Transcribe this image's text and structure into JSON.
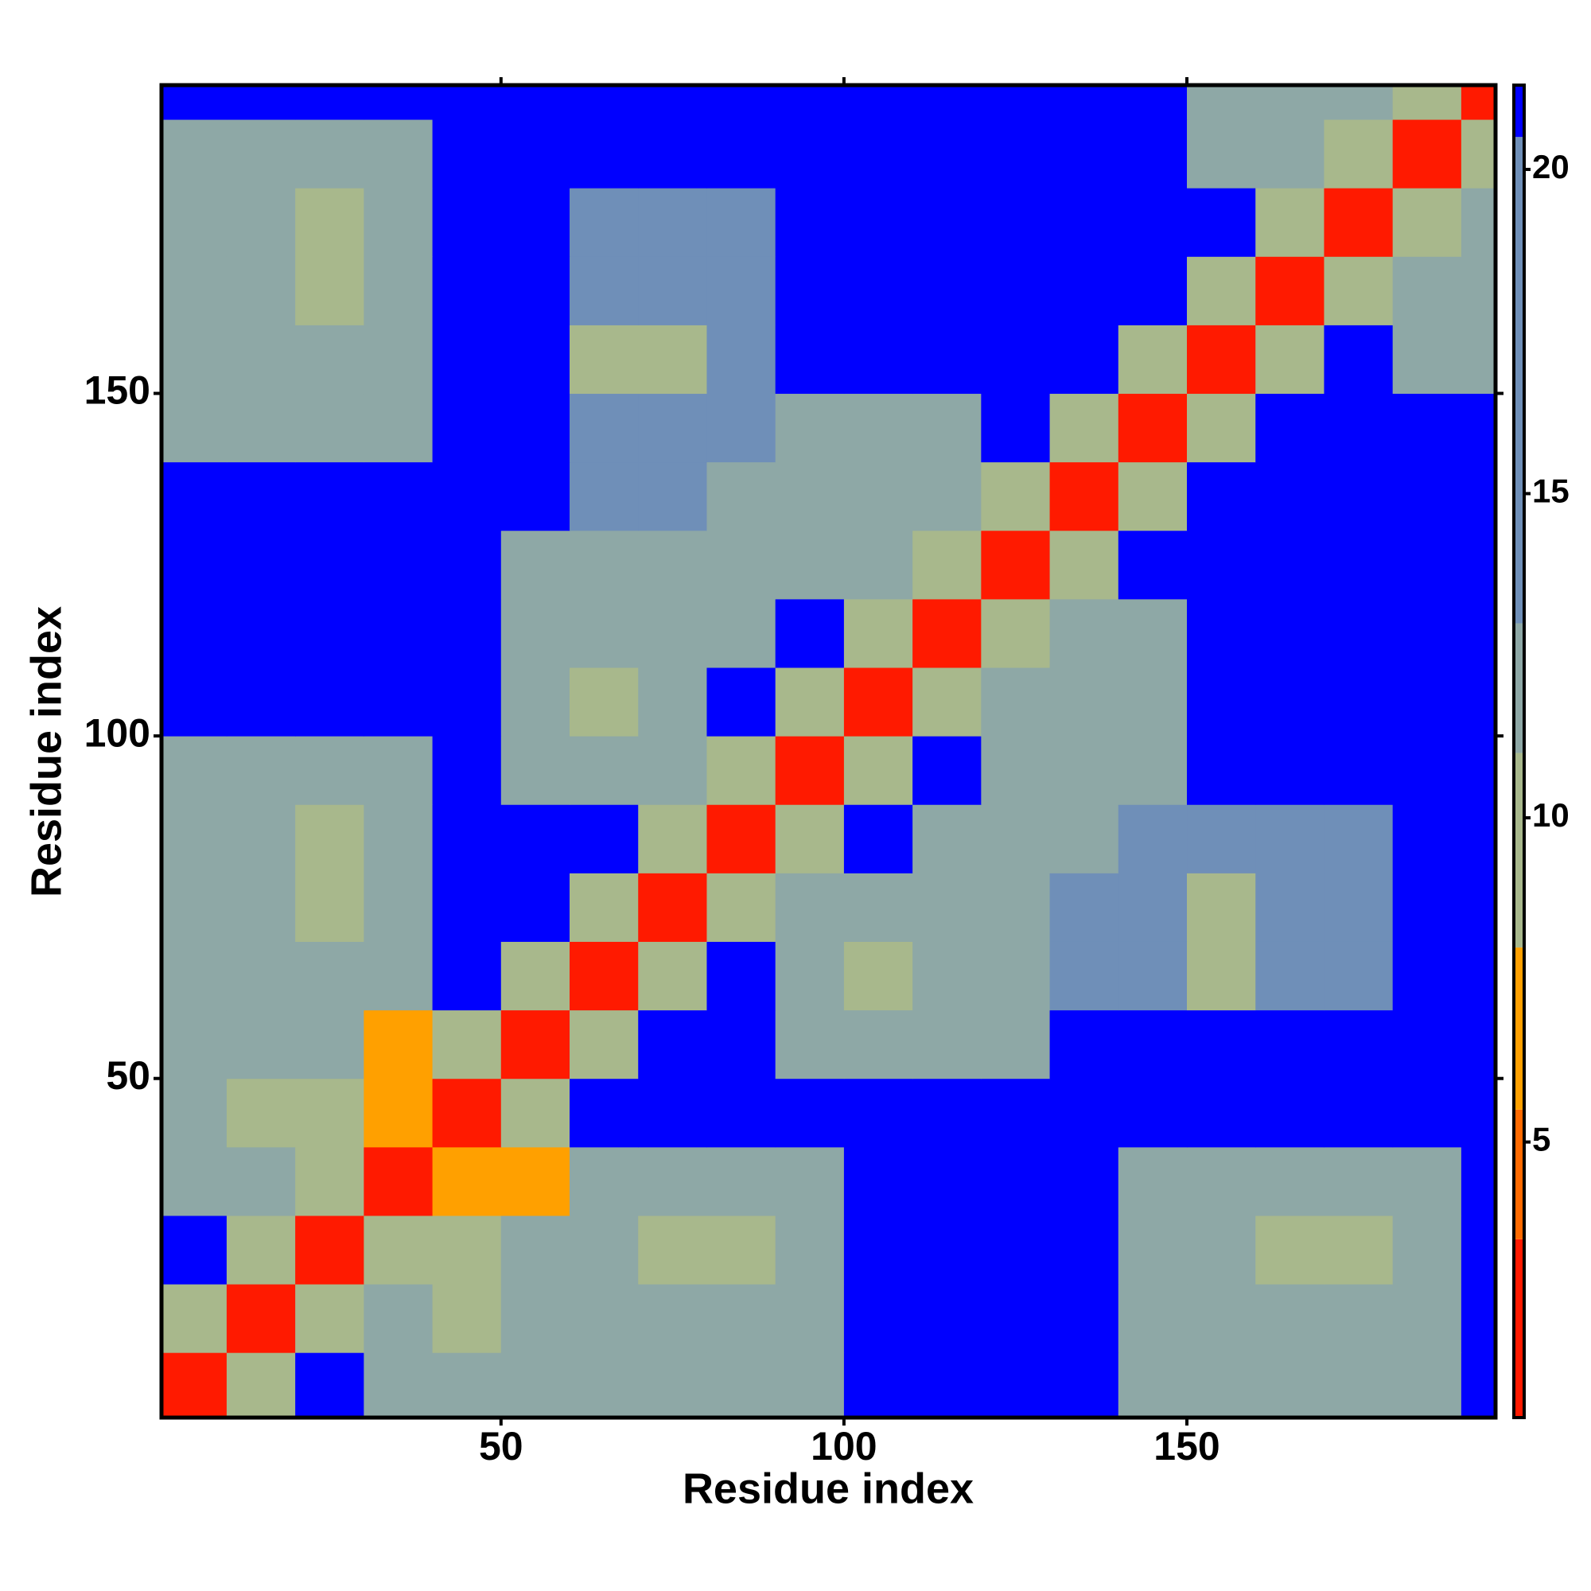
{
  "chart_data": {
    "type": "heatmap",
    "x_label": "Residue index",
    "y_label": "Residue index",
    "x": [
      5,
      15,
      25,
      35,
      45,
      55,
      65,
      75,
      85,
      95,
      105,
      115,
      125,
      135,
      145,
      155,
      165,
      175,
      185,
      195
    ],
    "y": [
      5,
      15,
      25,
      35,
      45,
      55,
      65,
      75,
      85,
      95,
      105,
      115,
      125,
      135,
      145,
      155,
      165,
      175,
      185,
      195
    ],
    "z": [
      [
        3,
        10,
        21,
        12,
        12,
        12,
        12,
        12,
        12,
        12,
        21,
        21,
        21,
        21,
        13,
        13,
        13,
        13,
        13,
        21
      ],
      [
        10,
        3,
        10,
        12,
        11,
        12,
        12,
        12,
        12,
        12,
        21,
        21,
        21,
        21,
        13,
        13,
        13,
        13,
        13,
        21
      ],
      [
        21,
        10,
        3,
        10,
        11,
        12,
        12,
        10,
        10,
        12,
        21,
        21,
        21,
        21,
        13,
        13,
        11,
        11,
        13,
        21
      ],
      [
        12,
        12,
        10,
        3,
        8,
        8,
        12,
        12,
        12,
        12,
        21,
        21,
        21,
        21,
        13,
        13,
        13,
        13,
        13,
        21
      ],
      [
        12,
        11,
        11,
        8,
        3,
        10,
        21,
        21,
        21,
        21,
        21,
        21,
        21,
        21,
        21,
        21,
        21,
        21,
        21,
        21
      ],
      [
        12,
        12,
        12,
        8,
        10,
        3,
        10,
        21,
        21,
        12,
        12,
        12,
        12,
        21,
        21,
        21,
        21,
        21,
        21,
        21
      ],
      [
        12,
        12,
        12,
        12,
        21,
        10,
        3,
        10,
        21,
        12,
        10,
        12,
        12,
        14,
        14,
        11,
        14,
        14,
        21,
        21
      ],
      [
        12,
        12,
        10,
        12,
        21,
        21,
        10,
        3,
        10,
        12,
        12,
        12,
        12,
        14,
        14,
        11,
        14,
        14,
        21,
        21
      ],
      [
        12,
        12,
        10,
        12,
        21,
        21,
        21,
        10,
        3,
        10,
        21,
        13,
        13,
        13,
        14,
        14,
        14,
        14,
        21,
        21
      ],
      [
        12,
        12,
        12,
        12,
        21,
        12,
        12,
        12,
        10,
        3,
        10,
        21,
        12,
        12,
        12,
        21,
        21,
        21,
        21,
        21
      ],
      [
        21,
        21,
        21,
        21,
        21,
        12,
        10,
        12,
        21,
        10,
        3,
        10,
        12,
        12,
        12,
        21,
        21,
        21,
        21,
        21
      ],
      [
        21,
        21,
        21,
        21,
        21,
        12,
        12,
        12,
        13,
        21,
        10,
        3,
        10,
        12,
        12,
        21,
        21,
        21,
        21,
        21
      ],
      [
        21,
        21,
        21,
        21,
        21,
        12,
        12,
        12,
        13,
        12,
        12,
        10,
        3,
        10,
        21,
        21,
        21,
        21,
        21,
        21
      ],
      [
        21,
        21,
        21,
        21,
        21,
        21,
        14,
        14,
        13,
        12,
        12,
        12,
        10,
        3,
        10,
        21,
        21,
        21,
        21,
        21
      ],
      [
        13,
        13,
        13,
        13,
        21,
        21,
        14,
        14,
        14,
        12,
        12,
        12,
        21,
        10,
        3,
        10,
        21,
        21,
        21,
        21
      ],
      [
        13,
        13,
        13,
        13,
        21,
        21,
        11,
        11,
        14,
        21,
        21,
        21,
        21,
        21,
        10,
        3,
        10,
        21,
        13,
        13
      ],
      [
        13,
        13,
        11,
        13,
        21,
        21,
        14,
        14,
        14,
        21,
        21,
        21,
        21,
        21,
        21,
        10,
        3,
        10,
        13,
        13
      ],
      [
        13,
        13,
        11,
        13,
        21,
        21,
        14,
        14,
        14,
        21,
        21,
        21,
        21,
        21,
        21,
        21,
        10,
        3,
        10,
        13
      ],
      [
        13,
        13,
        13,
        13,
        21,
        21,
        21,
        21,
        21,
        21,
        21,
        21,
        21,
        21,
        21,
        13,
        13,
        10,
        3,
        10
      ],
      [
        21,
        21,
        21,
        21,
        21,
        21,
        21,
        21,
        21,
        21,
        21,
        21,
        21,
        21,
        21,
        13,
        13,
        13,
        10,
        3
      ]
    ],
    "xlim": [
      0.5,
      195
    ],
    "ylim": [
      0.5,
      195
    ],
    "xticks": [
      50,
      100,
      150
    ],
    "yticks": [
      50,
      100,
      150
    ],
    "colorbar": {
      "lim": [
        0.75,
        21.3
      ],
      "ticks": [
        5,
        10,
        15,
        20
      ],
      "bins": [
        0.75,
        3.5,
        5.5,
        8,
        11,
        13,
        20.5,
        21.3
      ],
      "colors": [
        "#ff1a00",
        "#ff6a00",
        "#ffa000",
        "#a8b88c",
        "#8ea8a6",
        "#6f8fb8",
        "#0000ff"
      ]
    }
  }
}
